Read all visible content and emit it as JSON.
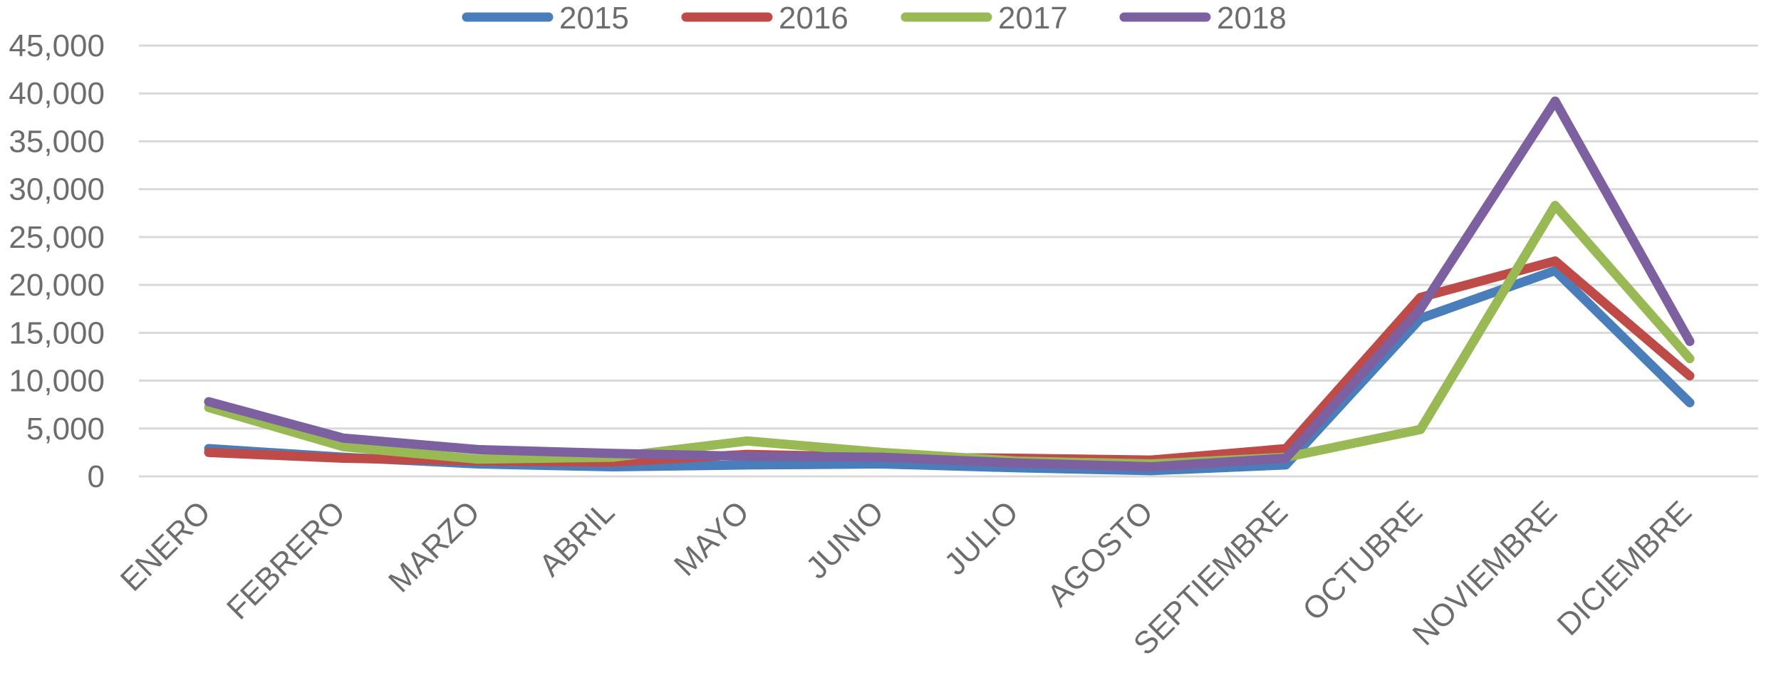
{
  "chart_data": {
    "type": "line",
    "title": "",
    "xlabel": "",
    "ylabel": "",
    "categories": [
      "ENERO",
      "FEBRERO",
      "MARZO",
      "ABRIL",
      "MAYO",
      "JUNIO",
      "JULIO",
      "AGOSTO",
      "SEPTIEMBRE",
      "OCTUBRE",
      "NOVIEMBRE",
      "DICIEMBRE"
    ],
    "ylim": [
      0,
      45000
    ],
    "yticks": [
      "0",
      "5,000",
      "10,000",
      "15,000",
      "20,000",
      "25,000",
      "30,000",
      "35,000",
      "40,000",
      "45,000"
    ],
    "grid": true,
    "legend_position": "top",
    "series": [
      {
        "name": "2015",
        "color": "#4a7ebb",
        "values": [
          2900,
          2000,
          1300,
          1000,
          1200,
          1300,
          900,
          600,
          1200,
          16500,
          21500,
          7700
        ]
      },
      {
        "name": "2016",
        "color": "#be4b48",
        "values": [
          2500,
          1900,
          1600,
          1500,
          2300,
          2000,
          1900,
          1700,
          2900,
          18700,
          22500,
          10500
        ]
      },
      {
        "name": "2017",
        "color": "#98b954",
        "values": [
          7200,
          3100,
          1800,
          2000,
          3700,
          2500,
          1600,
          1300,
          2000,
          4900,
          28300,
          12300
        ]
      },
      {
        "name": "2018",
        "color": "#7d60a0",
        "values": [
          7800,
          4000,
          2800,
          2400,
          2100,
          2000,
          1400,
          1000,
          1900,
          17500,
          39200,
          14100
        ]
      }
    ]
  }
}
